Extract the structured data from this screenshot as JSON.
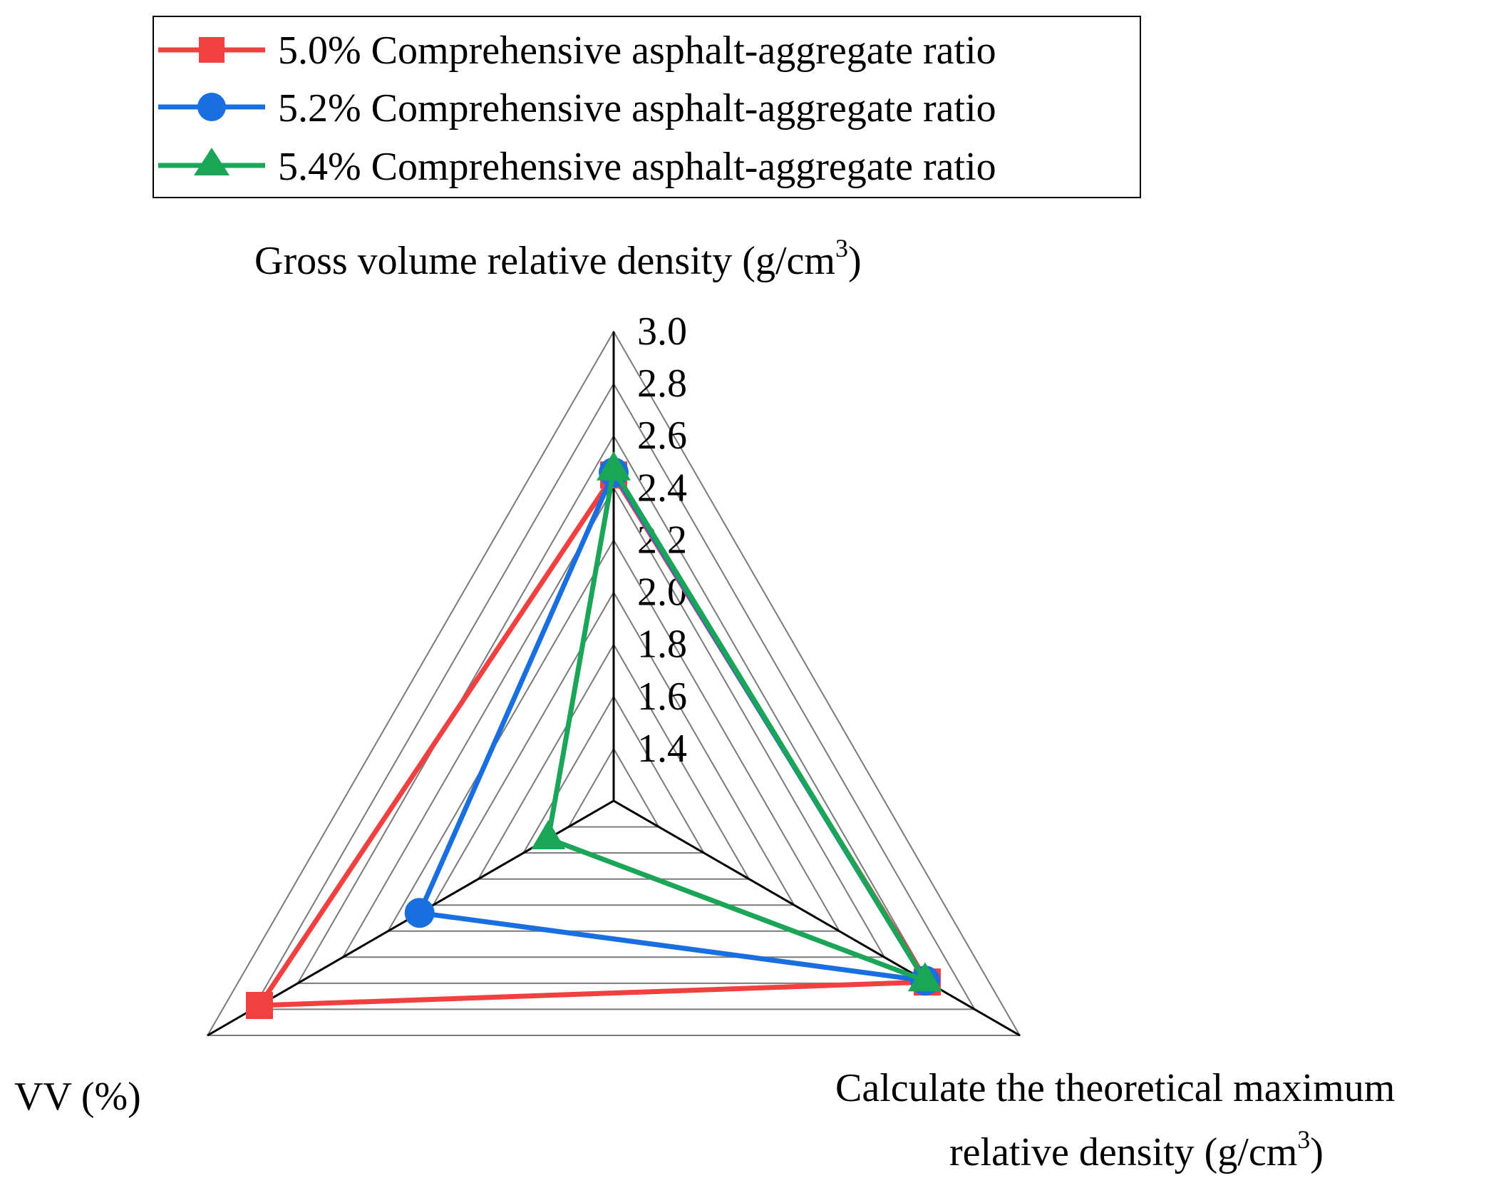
{
  "chart_data": {
    "type": "radar",
    "title": "",
    "axes": [
      {
        "id": "gross",
        "label": "Gross volume relative density (g/cm",
        "superscript": "3",
        "suffix": ")"
      },
      {
        "id": "theoretical",
        "label_line1": "Calculate the theoretical maximum",
        "label_line2": "relative density (g/cm",
        "superscript": "3",
        "suffix": ")"
      },
      {
        "id": "vv",
        "label": "VV (%)"
      }
    ],
    "rmin": 1.2,
    "rmax": 3.0,
    "grid_levels": [
      1.4,
      1.6,
      1.8,
      2.0,
      2.2,
      2.4,
      2.6,
      2.8,
      3.0
    ],
    "tick_labels": [
      "1.4",
      "1.6",
      "1.8",
      "2.0",
      "2.2",
      "2.4",
      "2.6",
      "2.8",
      "3.0"
    ],
    "legend_position": "top-left",
    "series": [
      {
        "name": "5.0% Comprehensive asphalt-aggregate ratio",
        "color": "#f04040",
        "marker": "square",
        "values": {
          "gross": 2.45,
          "theoretical": 2.59,
          "vv": 2.77
        }
      },
      {
        "name": "5.2% Comprehensive asphalt-aggregate ratio",
        "color": "#1a6fe0",
        "marker": "circle",
        "values": {
          "gross": 2.46,
          "theoretical": 2.58,
          "vv": 2.06
        }
      },
      {
        "name": "5.4% Comprehensive asphalt-aggregate ratio",
        "color": "#1aa557",
        "marker": "triangle",
        "values": {
          "gross": 2.47,
          "theoretical": 2.58,
          "vv": 1.49
        }
      }
    ]
  }
}
